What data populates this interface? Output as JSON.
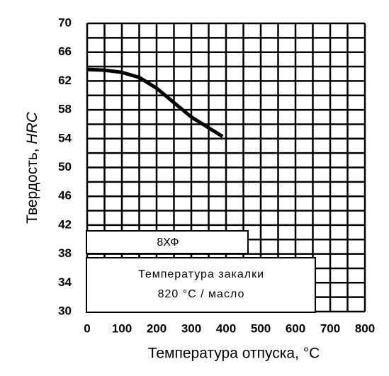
{
  "chart_data": {
    "type": "line",
    "xlabel": "Температура отпуска, °С",
    "ylabel": {
      "text": "Твердость,",
      "unit": "HRC"
    },
    "annotations": [
      "8ХФ",
      "Температура закалки",
      "820 °С / масло"
    ],
    "x": [
      0,
      50,
      100,
      150,
      200,
      250,
      300,
      350,
      390
    ],
    "series": [
      {
        "name": "8ХФ",
        "color": "#000000",
        "values": [
          63.6,
          63.5,
          63.2,
          62.5,
          61,
          59,
          57,
          55.5,
          54.3
        ]
      }
    ],
    "xlim": [
      0,
      800
    ],
    "xticks": [
      0,
      100,
      200,
      300,
      400,
      500,
      600,
      700,
      800
    ],
    "ylim": [
      30,
      70
    ],
    "yticks": [
      30,
      34,
      38,
      42,
      46,
      50,
      54,
      58,
      62,
      66,
      70
    ],
    "grid": true
  }
}
